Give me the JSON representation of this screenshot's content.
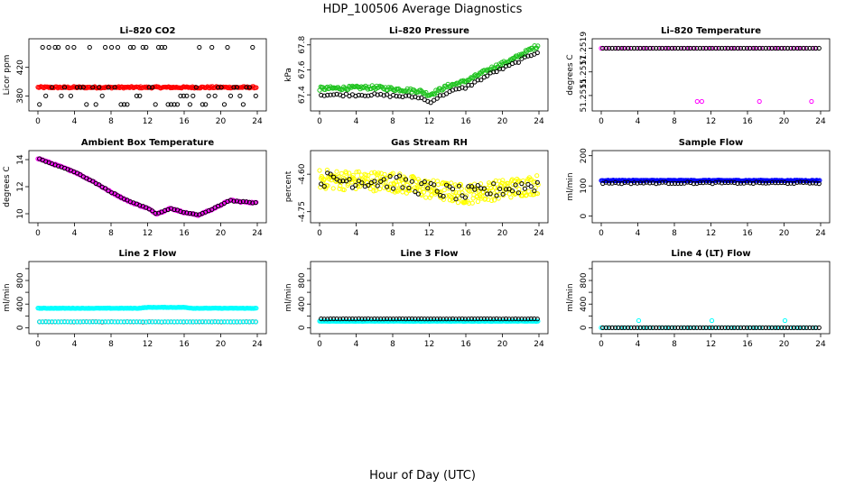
{
  "figure": {
    "title": "HDP_100506  Average Diagnostics",
    "xlabel": "Hour of Day (UTC)"
  },
  "chart_data": [
    {
      "id": "co2",
      "type": "scatter",
      "title": "Li–820 CO2",
      "ylabel": "Licor ppm",
      "xlim": [
        0,
        24
      ],
      "xticks": [
        0,
        4,
        8,
        12,
        16,
        20,
        24
      ],
      "xtick_labels": [
        "0",
        "4",
        "8",
        "12",
        "16",
        "20",
        "24"
      ],
      "ylim": [
        364,
        455
      ],
      "yticks": [
        380,
        420
      ],
      "ytick_labels": [
        "380",
        "420"
      ],
      "series": [
        {
          "name": "line-1",
          "color": "#ff0000",
          "model": "flat",
          "base": 392,
          "noise": 1.2,
          "n": 220
        },
        {
          "name": "other-lines",
          "color": "#000000",
          "model": "levels",
          "levels": [
            368,
            380,
            392,
            448
          ],
          "n": 70
        }
      ]
    },
    {
      "id": "pressure",
      "type": "scatter",
      "title": "Li–820 Pressure",
      "ylabel": "kPa",
      "xlim": [
        0,
        24
      ],
      "xticks": [
        0,
        4,
        8,
        12,
        16,
        20,
        24
      ],
      "xtick_labels": [
        "0",
        "4",
        "8",
        "12",
        "16",
        "20",
        "24"
      ],
      "ylim": [
        67.3,
        67.82
      ],
      "yticks": [
        67.4,
        67.6,
        67.8
      ],
      "ytick_labels": [
        "67.4",
        "67.6",
        "67.8"
      ],
      "series": [
        {
          "name": "line-1",
          "color": "#1fc31f",
          "model": "path",
          "path": [
            [
              0,
              67.45
            ],
            [
              6,
              67.46
            ],
            [
              11,
              67.43
            ],
            [
              12,
              67.4
            ],
            [
              14,
              67.47
            ],
            [
              16,
              67.51
            ],
            [
              19,
              67.62
            ],
            [
              21,
              67.68
            ],
            [
              24,
              67.8
            ]
          ],
          "noise": 0.015,
          "n": 200
        },
        {
          "name": "other-lines",
          "color": "#000000",
          "model": "path",
          "path": [
            [
              0,
              67.4
            ],
            [
              6,
              67.4
            ],
            [
              11,
              67.38
            ],
            [
              12,
              67.34
            ],
            [
              14,
              67.42
            ],
            [
              16,
              67.46
            ],
            [
              19,
              67.58
            ],
            [
              21,
              67.64
            ],
            [
              24,
              67.75
            ]
          ],
          "noise": 0.01,
          "n": 70
        }
      ]
    },
    {
      "id": "licor-temp",
      "type": "scatter",
      "title": "Li–820 Temperature",
      "ylabel": "degrees C",
      "xlim": [
        0,
        24
      ],
      "xticks": [
        0,
        4,
        8,
        12,
        16,
        20,
        24
      ],
      "xtick_labels": [
        "0",
        "4",
        "8",
        "12",
        "16",
        "20",
        "24"
      ],
      "ylim": [
        51.2514,
        51.25195
      ],
      "yticks": [
        51.2515,
        51.2517,
        51.2519
      ],
      "ytick_labels": [
        "51.2515",
        "51.2517",
        "51.2519"
      ],
      "series": [
        {
          "name": "line-1",
          "color": "#ff00ff",
          "model": "flat",
          "base": 51.2519,
          "noise": 0,
          "n": 40,
          "outliers": [
            [
              10.5,
              51.25145
            ],
            [
              11.0,
              51.25145
            ],
            [
              17.3,
              51.25145
            ],
            [
              23.0,
              51.25145
            ]
          ]
        },
        {
          "name": "other-lines",
          "color": "#000000",
          "model": "flat",
          "base": 51.2519,
          "noise": 0,
          "n": 70
        }
      ]
    },
    {
      "id": "box-temp",
      "type": "scatter",
      "title": "Ambient Box Temperature",
      "ylabel": "degrees C",
      "xlim": [
        0,
        24
      ],
      "xticks": [
        0,
        4,
        8,
        12,
        16,
        20,
        24
      ],
      "xtick_labels": [
        "0",
        "4",
        "8",
        "12",
        "16",
        "20",
        "24"
      ],
      "ylim": [
        9.6,
        14.4
      ],
      "yticks": [
        10,
        12,
        14
      ],
      "ytick_labels": [
        "10",
        "12",
        "14"
      ],
      "series": [
        {
          "name": "line-1",
          "color": "#ff00ff",
          "model": "path",
          "path": [
            [
              0,
              14.1
            ],
            [
              4,
              13.1
            ],
            [
              6,
              12.4
            ],
            [
              8,
              11.6
            ],
            [
              10,
              10.9
            ],
            [
              12,
              10.4
            ],
            [
              13,
              10.0
            ],
            [
              14.5,
              10.4
            ],
            [
              16,
              10.1
            ],
            [
              17.5,
              9.9
            ],
            [
              19,
              10.3
            ],
            [
              21,
              11.0
            ],
            [
              22,
              10.9
            ],
            [
              24,
              10.8
            ]
          ],
          "noise": 0.05,
          "n": 200
        },
        {
          "name": "other-lines",
          "color": "#000000",
          "model": "path",
          "path": [
            [
              0,
              14.1
            ],
            [
              4,
              13.1
            ],
            [
              6,
              12.4
            ],
            [
              8,
              11.6
            ],
            [
              10,
              10.9
            ],
            [
              12,
              10.4
            ],
            [
              13,
              10.0
            ],
            [
              14.5,
              10.4
            ],
            [
              16,
              10.1
            ],
            [
              17.5,
              9.9
            ],
            [
              19,
              10.3
            ],
            [
              21,
              11.0
            ],
            [
              22,
              10.9
            ],
            [
              24,
              10.8
            ]
          ],
          "noise": 0.03,
          "n": 70
        }
      ]
    },
    {
      "id": "rh",
      "type": "scatter",
      "title": "Gas Stream RH",
      "ylabel": "percent",
      "xlim": [
        0,
        24
      ],
      "xticks": [
        0,
        4,
        8,
        12,
        16,
        20,
        24
      ],
      "xtick_labels": [
        "0",
        "4",
        "8",
        "12",
        "16",
        "20",
        "24"
      ],
      "ylim": [
        -4.78,
        -4.52
      ],
      "yticks": [
        -4.75,
        -4.6
      ],
      "ytick_labels": [
        "-4.75",
        "-4.60"
      ],
      "series": [
        {
          "name": "line-1",
          "color": "#ffff00",
          "model": "path",
          "path": [
            [
              0,
              -4.62
            ],
            [
              8,
              -4.63
            ],
            [
              12,
              -4.66
            ],
            [
              16,
              -4.68
            ],
            [
              20,
              -4.66
            ],
            [
              24,
              -4.64
            ]
          ],
          "noise": 0.04,
          "n": 320
        },
        {
          "name": "other-lines",
          "color": "#000000",
          "model": "path",
          "path": [
            [
              0,
              -4.62
            ],
            [
              8,
              -4.63
            ],
            [
              12,
              -4.66
            ],
            [
              16,
              -4.68
            ],
            [
              20,
              -4.66
            ],
            [
              24,
              -4.64
            ]
          ],
          "noise": 0.03,
          "n": 70
        }
      ]
    },
    {
      "id": "sample-flow",
      "type": "scatter",
      "title": "Sample Flow",
      "ylabel": "ml/min",
      "xlim": [
        0,
        24
      ],
      "xticks": [
        0,
        4,
        8,
        12,
        16,
        20,
        24
      ],
      "xtick_labels": [
        "0",
        "4",
        "8",
        "12",
        "16",
        "20",
        "24"
      ],
      "ylim": [
        -10,
        205
      ],
      "yticks": [
        0,
        100,
        200
      ],
      "ytick_labels": [
        "0",
        "100",
        "200"
      ],
      "series": [
        {
          "name": "line-1",
          "color": "#0000ff",
          "model": "flat",
          "base": 118,
          "noise": 1.5,
          "n": 220
        },
        {
          "name": "other-lines",
          "color": "#000000",
          "model": "flat",
          "base": 110,
          "noise": 2.5,
          "n": 70
        }
      ]
    },
    {
      "id": "line2-flow",
      "type": "scatter",
      "title": "Line 2 Flow",
      "ylabel": "ml/min",
      "xlim": [
        0,
        24
      ],
      "xticks": [
        0,
        4,
        8,
        12,
        16,
        20,
        24
      ],
      "xtick_labels": [
        "0",
        "4",
        "8",
        "12",
        "16",
        "20",
        "24"
      ],
      "ylim": [
        -40,
        1060
      ],
      "yticks": [
        0,
        200,
        400,
        600,
        800,
        1000
      ],
      "ytick_labels": [
        "0",
        "",
        "400",
        "",
        "800",
        ""
      ],
      "series": [
        {
          "name": "line-1",
          "color": "#00ffff",
          "model": "path",
          "path": [
            [
              0,
              330
            ],
            [
              11,
              330
            ],
            [
              12,
              345
            ],
            [
              16,
              345
            ],
            [
              17,
              330
            ],
            [
              24,
              330
            ]
          ],
          "noise": 4,
          "n": 220
        },
        {
          "name": "other-lines",
          "color": "#000000",
          "model": "flat",
          "base": 100,
          "noise": 2,
          "n": 70
        },
        {
          "name": "other-lines-cyan",
          "color": "#00ffff",
          "model": "flat",
          "base": 100,
          "noise": 2,
          "n": 70
        }
      ]
    },
    {
      "id": "line3-flow",
      "type": "scatter",
      "title": "Line 3 Flow",
      "ylabel": "ml/min",
      "xlim": [
        0,
        24
      ],
      "xticks": [
        0,
        4,
        8,
        12,
        16,
        20,
        24
      ],
      "xtick_labels": [
        "0",
        "4",
        "8",
        "12",
        "16",
        "20",
        "24"
      ],
      "ylim": [
        -40,
        1060
      ],
      "yticks": [
        0,
        200,
        400,
        600,
        800,
        1000
      ],
      "ytick_labels": [
        "0",
        "",
        "400",
        "",
        "800",
        ""
      ],
      "series": [
        {
          "name": "line-1",
          "color": "#00ffff",
          "model": "flat",
          "base": 110,
          "noise": 3,
          "n": 220
        },
        {
          "name": "other-lines",
          "color": "#000000",
          "model": "flat",
          "base": 150,
          "noise": 2,
          "n": 70
        }
      ]
    },
    {
      "id": "line4-flow",
      "type": "scatter",
      "title": "Line 4 (LT) Flow",
      "ylabel": "ml/min",
      "xlim": [
        0,
        24
      ],
      "xticks": [
        0,
        4,
        8,
        12,
        16,
        20,
        24
      ],
      "xtick_labels": [
        "0",
        "4",
        "8",
        "12",
        "16",
        "20",
        "24"
      ],
      "ylim": [
        -40,
        1060
      ],
      "yticks": [
        0,
        200,
        400,
        600,
        800,
        1000
      ],
      "ytick_labels": [
        "0",
        "",
        "400",
        "",
        "800",
        ""
      ],
      "series": [
        {
          "name": "line-1",
          "color": "#00ffff",
          "model": "flat",
          "base": 0,
          "noise": 0,
          "n": 40,
          "outliers": [
            [
              4.1,
              120
            ],
            [
              12.1,
              120
            ],
            [
              20.1,
              120
            ]
          ]
        },
        {
          "name": "other-lines",
          "color": "#000000",
          "model": "flat",
          "base": 0,
          "noise": 0,
          "n": 70
        }
      ]
    }
  ]
}
